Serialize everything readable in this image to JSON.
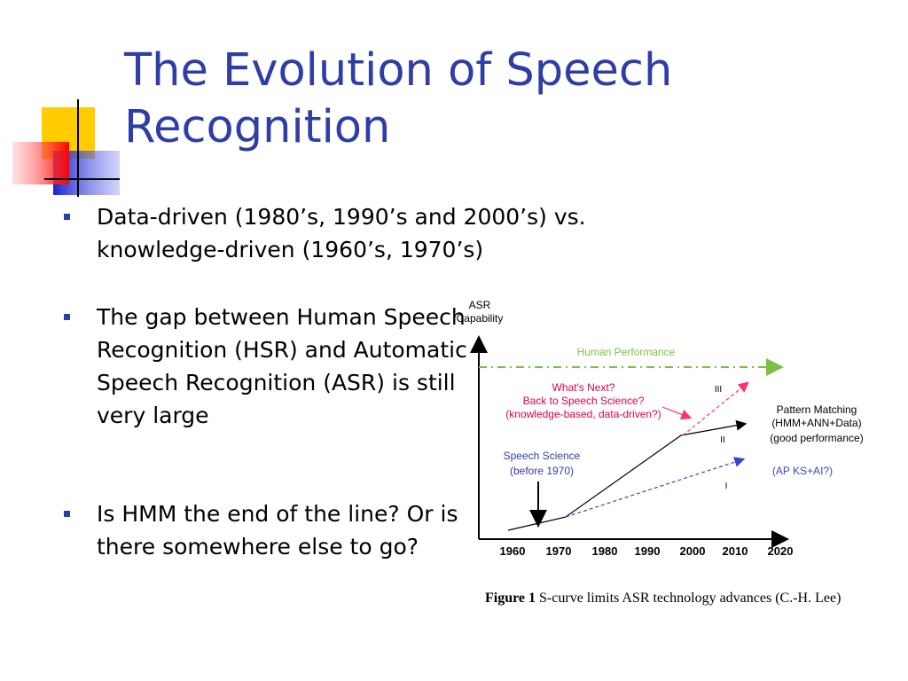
{
  "slide": {
    "title": "The Evolution of Speech Recognition",
    "bullets": [
      {
        "text": "Data-driven (1980’s, 1990’s and 2000’s) vs. knowledge-driven (1960’s, 1970’s)"
      },
      {
        "text": "The gap between Human Speech Recognition (HSR) and Automatic Speech Recognition (ASR) is still very large"
      },
      {
        "text": "Is HMM the end of the line?  Or is there somewhere else to go?"
      }
    ],
    "colors": {
      "title": "#2f3da6",
      "bullet": "#2f3da6",
      "human_line": "#7ac143",
      "next_line": "#ff3366",
      "dashed_blue": "#3b43c8",
      "axis": "#000000"
    }
  },
  "figure": {
    "y_axis_label_line1": "ASR",
    "y_axis_label_line2": "Capability",
    "x_ticks": [
      "1960",
      "1970",
      "1980",
      "1990",
      "2000",
      "2010",
      "2020"
    ],
    "labels": {
      "human": "Human Performance",
      "whats_next_1": "What's Next?",
      "whats_next_2": "Back to Speech Science?",
      "whats_next_3": "(knowledge-based, data-driven?)",
      "speech_science_1": "Speech Science",
      "speech_science_2": "(before 1970)",
      "pattern_1": "Pattern Matching",
      "pattern_2": "(HMM+ANN+Data)",
      "pattern_3": "(good performance)",
      "ap": "(AP KS+AI?)",
      "roman_3": "III",
      "roman_2": "II",
      "roman_1": "I"
    },
    "caption": {
      "label": "Figure 1",
      "text": "S-curve limits ASR technology advances (C.-H. Lee)"
    }
  }
}
